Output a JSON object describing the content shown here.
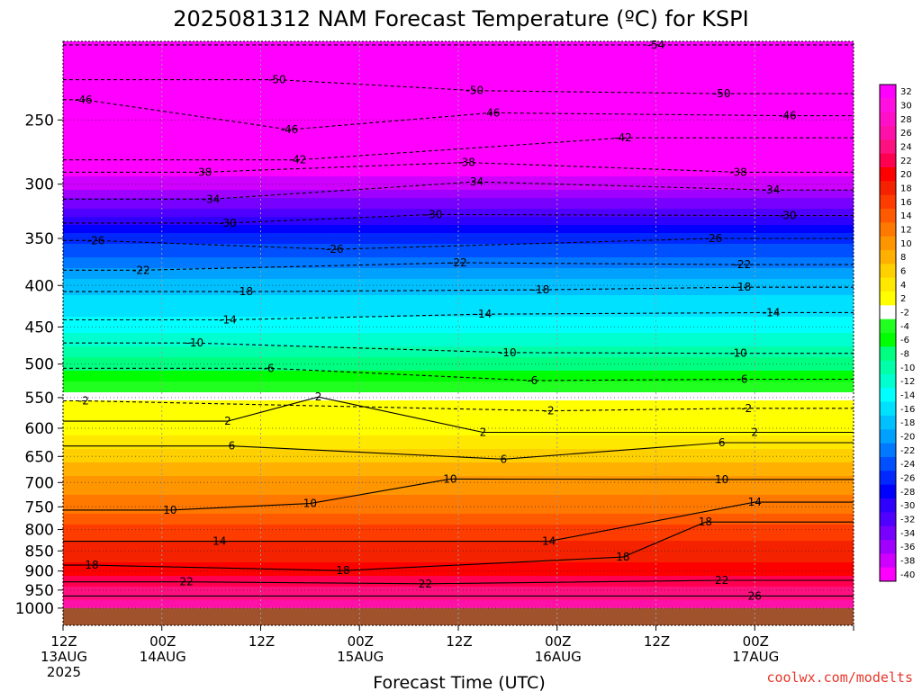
{
  "chart_data": {
    "type": "heatmap",
    "title": "2025081312 NAM Forecast Temperature (ºC) for KSPI",
    "xlabel": "Forecast Time (UTC)",
    "ylabel": "",
    "y_scale": "log",
    "ylim": [
      1050,
      200
    ],
    "y_ticks": [
      250,
      300,
      350,
      400,
      450,
      500,
      550,
      600,
      650,
      700,
      750,
      800,
      850,
      900,
      950,
      1000
    ],
    "y_tick_labels": [
      "250",
      "300",
      "350",
      "400",
      "450",
      "500",
      "550",
      "600",
      "650",
      "700",
      "750",
      "800",
      "850",
      "900",
      "950",
      "1000"
    ],
    "x_ticks": [
      0,
      12,
      24,
      36,
      48,
      60,
      72,
      84,
      96
    ],
    "x_tick_labels": [
      [
        "12Z",
        "13AUG",
        "2025"
      ],
      [
        "00Z",
        "14AUG"
      ],
      [
        "12Z"
      ],
      [
        "00Z",
        "15AUG"
      ],
      [
        "12Z"
      ],
      [
        "00Z",
        "16AUG"
      ],
      [
        "12Z"
      ],
      [
        "00Z",
        "17AUG"
      ]
    ],
    "x_tick_label_hours": [
      0,
      12,
      24,
      36,
      48,
      60,
      72,
      84
    ],
    "grid": true,
    "ground_level_hpa": 1000,
    "ground_color": "#a0522d",
    "colorbar": {
      "labels": [
        "32",
        "30",
        "28",
        "26",
        "24",
        "22",
        "20",
        "18",
        "16",
        "14",
        "12",
        "10",
        "8",
        "6",
        "4",
        "2",
        "-2",
        "-4",
        "-6",
        "-8",
        "-10",
        "-12",
        "-14",
        "-16",
        "-18",
        "-20",
        "-22",
        "-24",
        "-26",
        "-28",
        "-30",
        "-32",
        "-34",
        "-36",
        "-38",
        "-40"
      ],
      "colors": [
        "#ff00ff",
        "#ff10e0",
        "#ff10c8",
        "#ff10a8",
        "#ff1080",
        "#ff0050",
        "#ff0000",
        "#f52200",
        "#ff3c00",
        "#ff5a00",
        "#ff7800",
        "#ff9600",
        "#ffb000",
        "#ffd000",
        "#ffe800",
        "#ffff00",
        "#ffffff",
        "#20ff20",
        "#00ff00",
        "#00ff80",
        "#00ffa8",
        "#00ffd0",
        "#00ffff",
        "#00e0ff",
        "#00c0ff",
        "#00a0ff",
        "#0078ff",
        "#0050ff",
        "#0028ff",
        "#0000ff",
        "#3000ff",
        "#5000ff",
        "#7800ff",
        "#a000ff",
        "#d000ff",
        "#ff00ff"
      ]
    },
    "temperature_profile": {
      "pressure_hpa": [
        200,
        250,
        300,
        350,
        400,
        450,
        500,
        550,
        560,
        580,
        600,
        650,
        700,
        750,
        800,
        850,
        900,
        950,
        1000
      ],
      "temperature_c": [
        -54,
        -46,
        -38,
        -26,
        -18,
        -14,
        -8,
        -2,
        0,
        2,
        2,
        6,
        10,
        12,
        16,
        18,
        20,
        24,
        26
      ]
    },
    "contour_labels": [
      {
        "text": "-54",
        "hour": 72,
        "p": 202
      },
      {
        "text": "-50",
        "hour": 26,
        "p": 223
      },
      {
        "text": "-50",
        "hour": 50,
        "p": 230
      },
      {
        "text": "-50",
        "hour": 80,
        "p": 232
      },
      {
        "text": "-46",
        "hour": 2.5,
        "p": 236
      },
      {
        "text": "-46",
        "hour": 52,
        "p": 245
      },
      {
        "text": "-46",
        "hour": 88,
        "p": 247
      },
      {
        "text": "-46",
        "hour": 27.5,
        "p": 257
      },
      {
        "text": "-42",
        "hour": 68,
        "p": 263
      },
      {
        "text": "-42",
        "hour": 28.5,
        "p": 280
      },
      {
        "text": "-38",
        "hour": 49,
        "p": 282
      },
      {
        "text": "-38",
        "hour": 17,
        "p": 290
      },
      {
        "text": "-38",
        "hour": 82,
        "p": 290
      },
      {
        "text": "-34",
        "hour": 50,
        "p": 298
      },
      {
        "text": "-34",
        "hour": 18,
        "p": 313
      },
      {
        "text": "-34",
        "hour": 86,
        "p": 305
      },
      {
        "text": "-30",
        "hour": 45,
        "p": 327
      },
      {
        "text": "-30",
        "hour": 20,
        "p": 335
      },
      {
        "text": "-30",
        "hour": 88,
        "p": 328
      },
      {
        "text": "-26",
        "hour": 4,
        "p": 352
      },
      {
        "text": "-26",
        "hour": 33,
        "p": 361
      },
      {
        "text": "-26",
        "hour": 79,
        "p": 350
      },
      {
        "text": "-22",
        "hour": 9.5,
        "p": 383
      },
      {
        "text": "-22",
        "hour": 48,
        "p": 375
      },
      {
        "text": "-22",
        "hour": 82.5,
        "p": 377
      },
      {
        "text": "-18",
        "hour": 22,
        "p": 407
      },
      {
        "text": "-18",
        "hour": 58,
        "p": 405
      },
      {
        "text": "-18",
        "hour": 82.5,
        "p": 402
      },
      {
        "text": "-14",
        "hour": 20,
        "p": 441
      },
      {
        "text": "-14",
        "hour": 51,
        "p": 434
      },
      {
        "text": "-14",
        "hour": 86,
        "p": 432
      },
      {
        "text": "-10",
        "hour": 16,
        "p": 471
      },
      {
        "text": "-10",
        "hour": 54,
        "p": 484
      },
      {
        "text": "-10",
        "hour": 82,
        "p": 485
      },
      {
        "text": "-6",
        "hour": 25,
        "p": 506
      },
      {
        "text": "-6",
        "hour": 57,
        "p": 524
      },
      {
        "text": "-6",
        "hour": 82.5,
        "p": 522
      },
      {
        "text": "-2",
        "hour": 2.5,
        "p": 555
      },
      {
        "text": "2",
        "hour": 31,
        "p": 549
      },
      {
        "text": "-2",
        "hour": 59,
        "p": 571
      },
      {
        "text": "-2",
        "hour": 83,
        "p": 567
      },
      {
        "text": "2",
        "hour": 20,
        "p": 588
      },
      {
        "text": "2",
        "hour": 51,
        "p": 607
      },
      {
        "text": "2",
        "hour": 84,
        "p": 607
      },
      {
        "text": "6",
        "hour": 20.5,
        "p": 631
      },
      {
        "text": "6",
        "hour": 53.5,
        "p": 655
      },
      {
        "text": "6",
        "hour": 80,
        "p": 625
      },
      {
        "text": "10",
        "hour": 47,
        "p": 693
      },
      {
        "text": "10",
        "hour": 80,
        "p": 694
      },
      {
        "text": "10",
        "hour": 30,
        "p": 743
      },
      {
        "text": "10",
        "hour": 13,
        "p": 757
      },
      {
        "text": "14",
        "hour": 84,
        "p": 740
      },
      {
        "text": "18",
        "hour": 78,
        "p": 783
      },
      {
        "text": "14",
        "hour": 19,
        "p": 827
      },
      {
        "text": "14",
        "hour": 59,
        "p": 827
      },
      {
        "text": "18",
        "hour": 68,
        "p": 865
      },
      {
        "text": "18",
        "hour": 3.5,
        "p": 885
      },
      {
        "text": "18",
        "hour": 34,
        "p": 899
      },
      {
        "text": "22",
        "hour": 15,
        "p": 928
      },
      {
        "text": "22",
        "hour": 44,
        "p": 933
      },
      {
        "text": "22",
        "hour": 80,
        "p": 924
      },
      {
        "text": "26",
        "hour": 84,
        "p": 966
      }
    ]
  },
  "credit": "coolwx.com/modelts",
  "colors": {
    "credit": "#e8372a",
    "grid": "#9a9a9a",
    "contour_line": "#000000",
    "freezing_line": "#e8006a"
  }
}
